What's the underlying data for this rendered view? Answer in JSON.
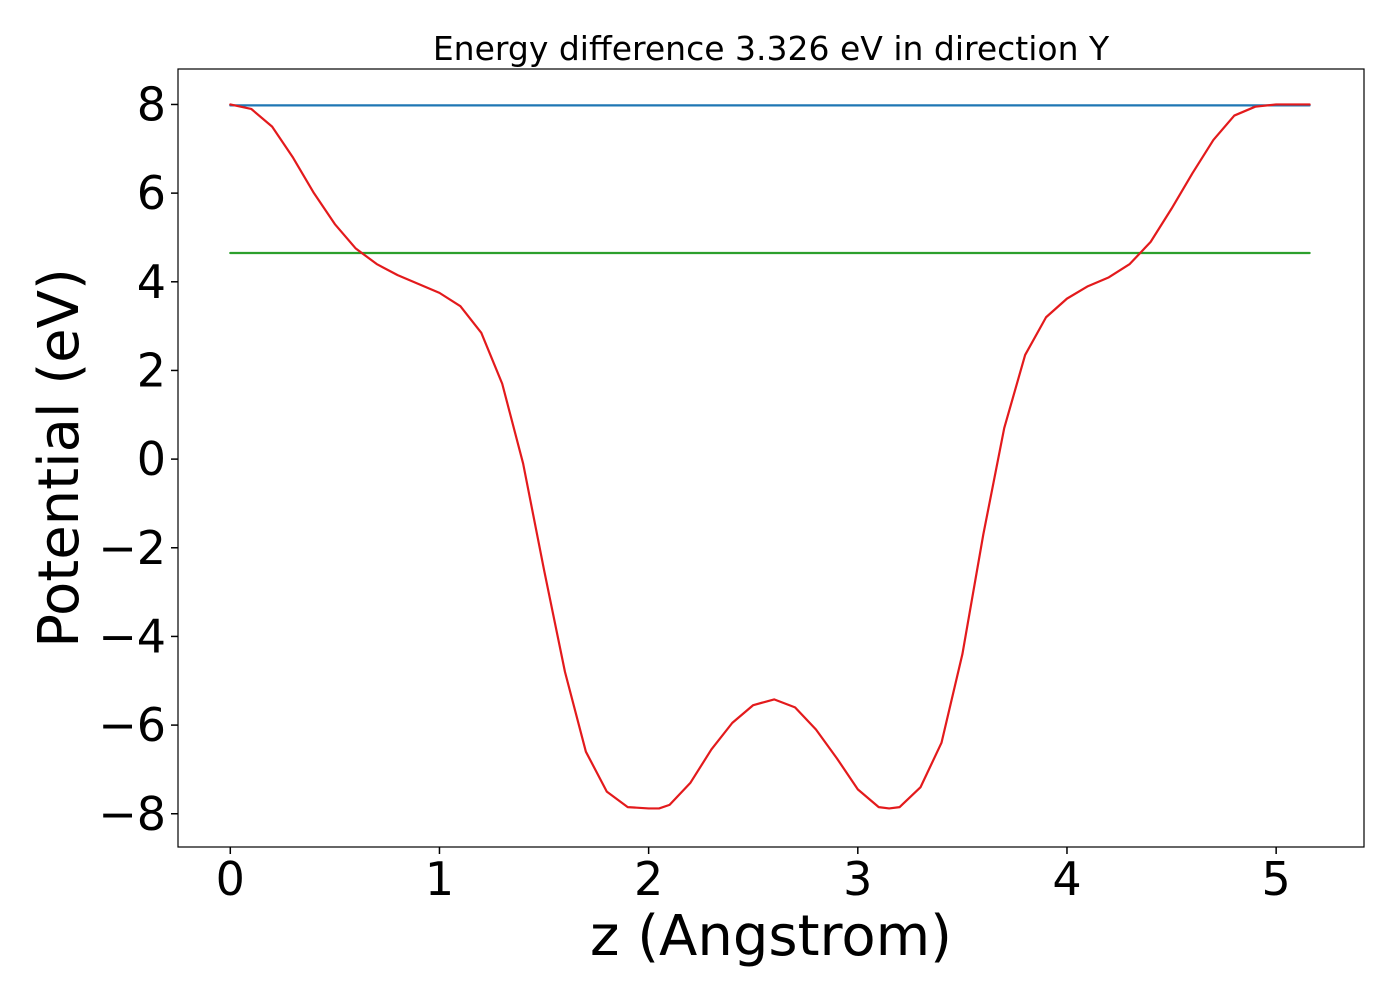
{
  "chart_data": {
    "type": "line",
    "title": "Energy difference 3.326 eV in direction Y",
    "xlabel": "z (Angstrom)",
    "ylabel": "Potential (eV)",
    "xlim": [
      -0.25,
      5.42
    ],
    "ylim": [
      -8.75,
      8.8
    ],
    "x_ticks": [
      0,
      1,
      2,
      3,
      4,
      5
    ],
    "x_tick_labels": [
      "0",
      "1",
      "2",
      "3",
      "4",
      "5"
    ],
    "y_ticks": [
      8,
      6,
      4,
      2,
      0,
      -2,
      -4,
      -6,
      -8
    ],
    "y_tick_labels": [
      "8",
      "6",
      "4",
      "2",
      "0",
      "−2",
      "−4",
      "−6",
      "−8"
    ],
    "grid": false,
    "legend": "none",
    "series": [
      {
        "color": "#1f77b4",
        "x": [
          0,
          5.16
        ],
        "y": [
          7.98,
          7.98
        ]
      },
      {
        "color": "#2ca02c",
        "x": [
          0,
          5.16
        ],
        "y": [
          4.65,
          4.65
        ]
      },
      {
        "color": "#e31a1c",
        "x": [
          0,
          0.1,
          0.2,
          0.3,
          0.4,
          0.5,
          0.6,
          0.7,
          0.8,
          0.9,
          1.0,
          1.1,
          1.2,
          1.3,
          1.4,
          1.5,
          1.6,
          1.7,
          1.8,
          1.9,
          2.0,
          2.05,
          2.1,
          2.2,
          2.3,
          2.4,
          2.5,
          2.6,
          2.7,
          2.8,
          2.9,
          3.0,
          3.1,
          3.15,
          3.2,
          3.3,
          3.4,
          3.5,
          3.6,
          3.7,
          3.8,
          3.9,
          4.0,
          4.1,
          4.2,
          4.3,
          4.4,
          4.5,
          4.6,
          4.7,
          4.8,
          4.9,
          5.0,
          5.1,
          5.16
        ],
        "y": [
          8.0,
          7.9,
          7.5,
          6.8,
          6.0,
          5.3,
          4.75,
          4.4,
          4.15,
          3.95,
          3.75,
          3.45,
          2.85,
          1.7,
          -0.1,
          -2.5,
          -4.8,
          -6.6,
          -7.5,
          -7.85,
          -7.88,
          -7.88,
          -7.8,
          -7.3,
          -6.55,
          -5.95,
          -5.55,
          -5.42,
          -5.6,
          -6.1,
          -6.75,
          -7.45,
          -7.85,
          -7.88,
          -7.85,
          -7.4,
          -6.4,
          -4.4,
          -1.7,
          0.7,
          2.35,
          3.2,
          3.62,
          3.9,
          4.1,
          4.4,
          4.9,
          5.65,
          6.45,
          7.2,
          7.75,
          7.95,
          8.0,
          8.0,
          8.0
        ]
      }
    ]
  }
}
